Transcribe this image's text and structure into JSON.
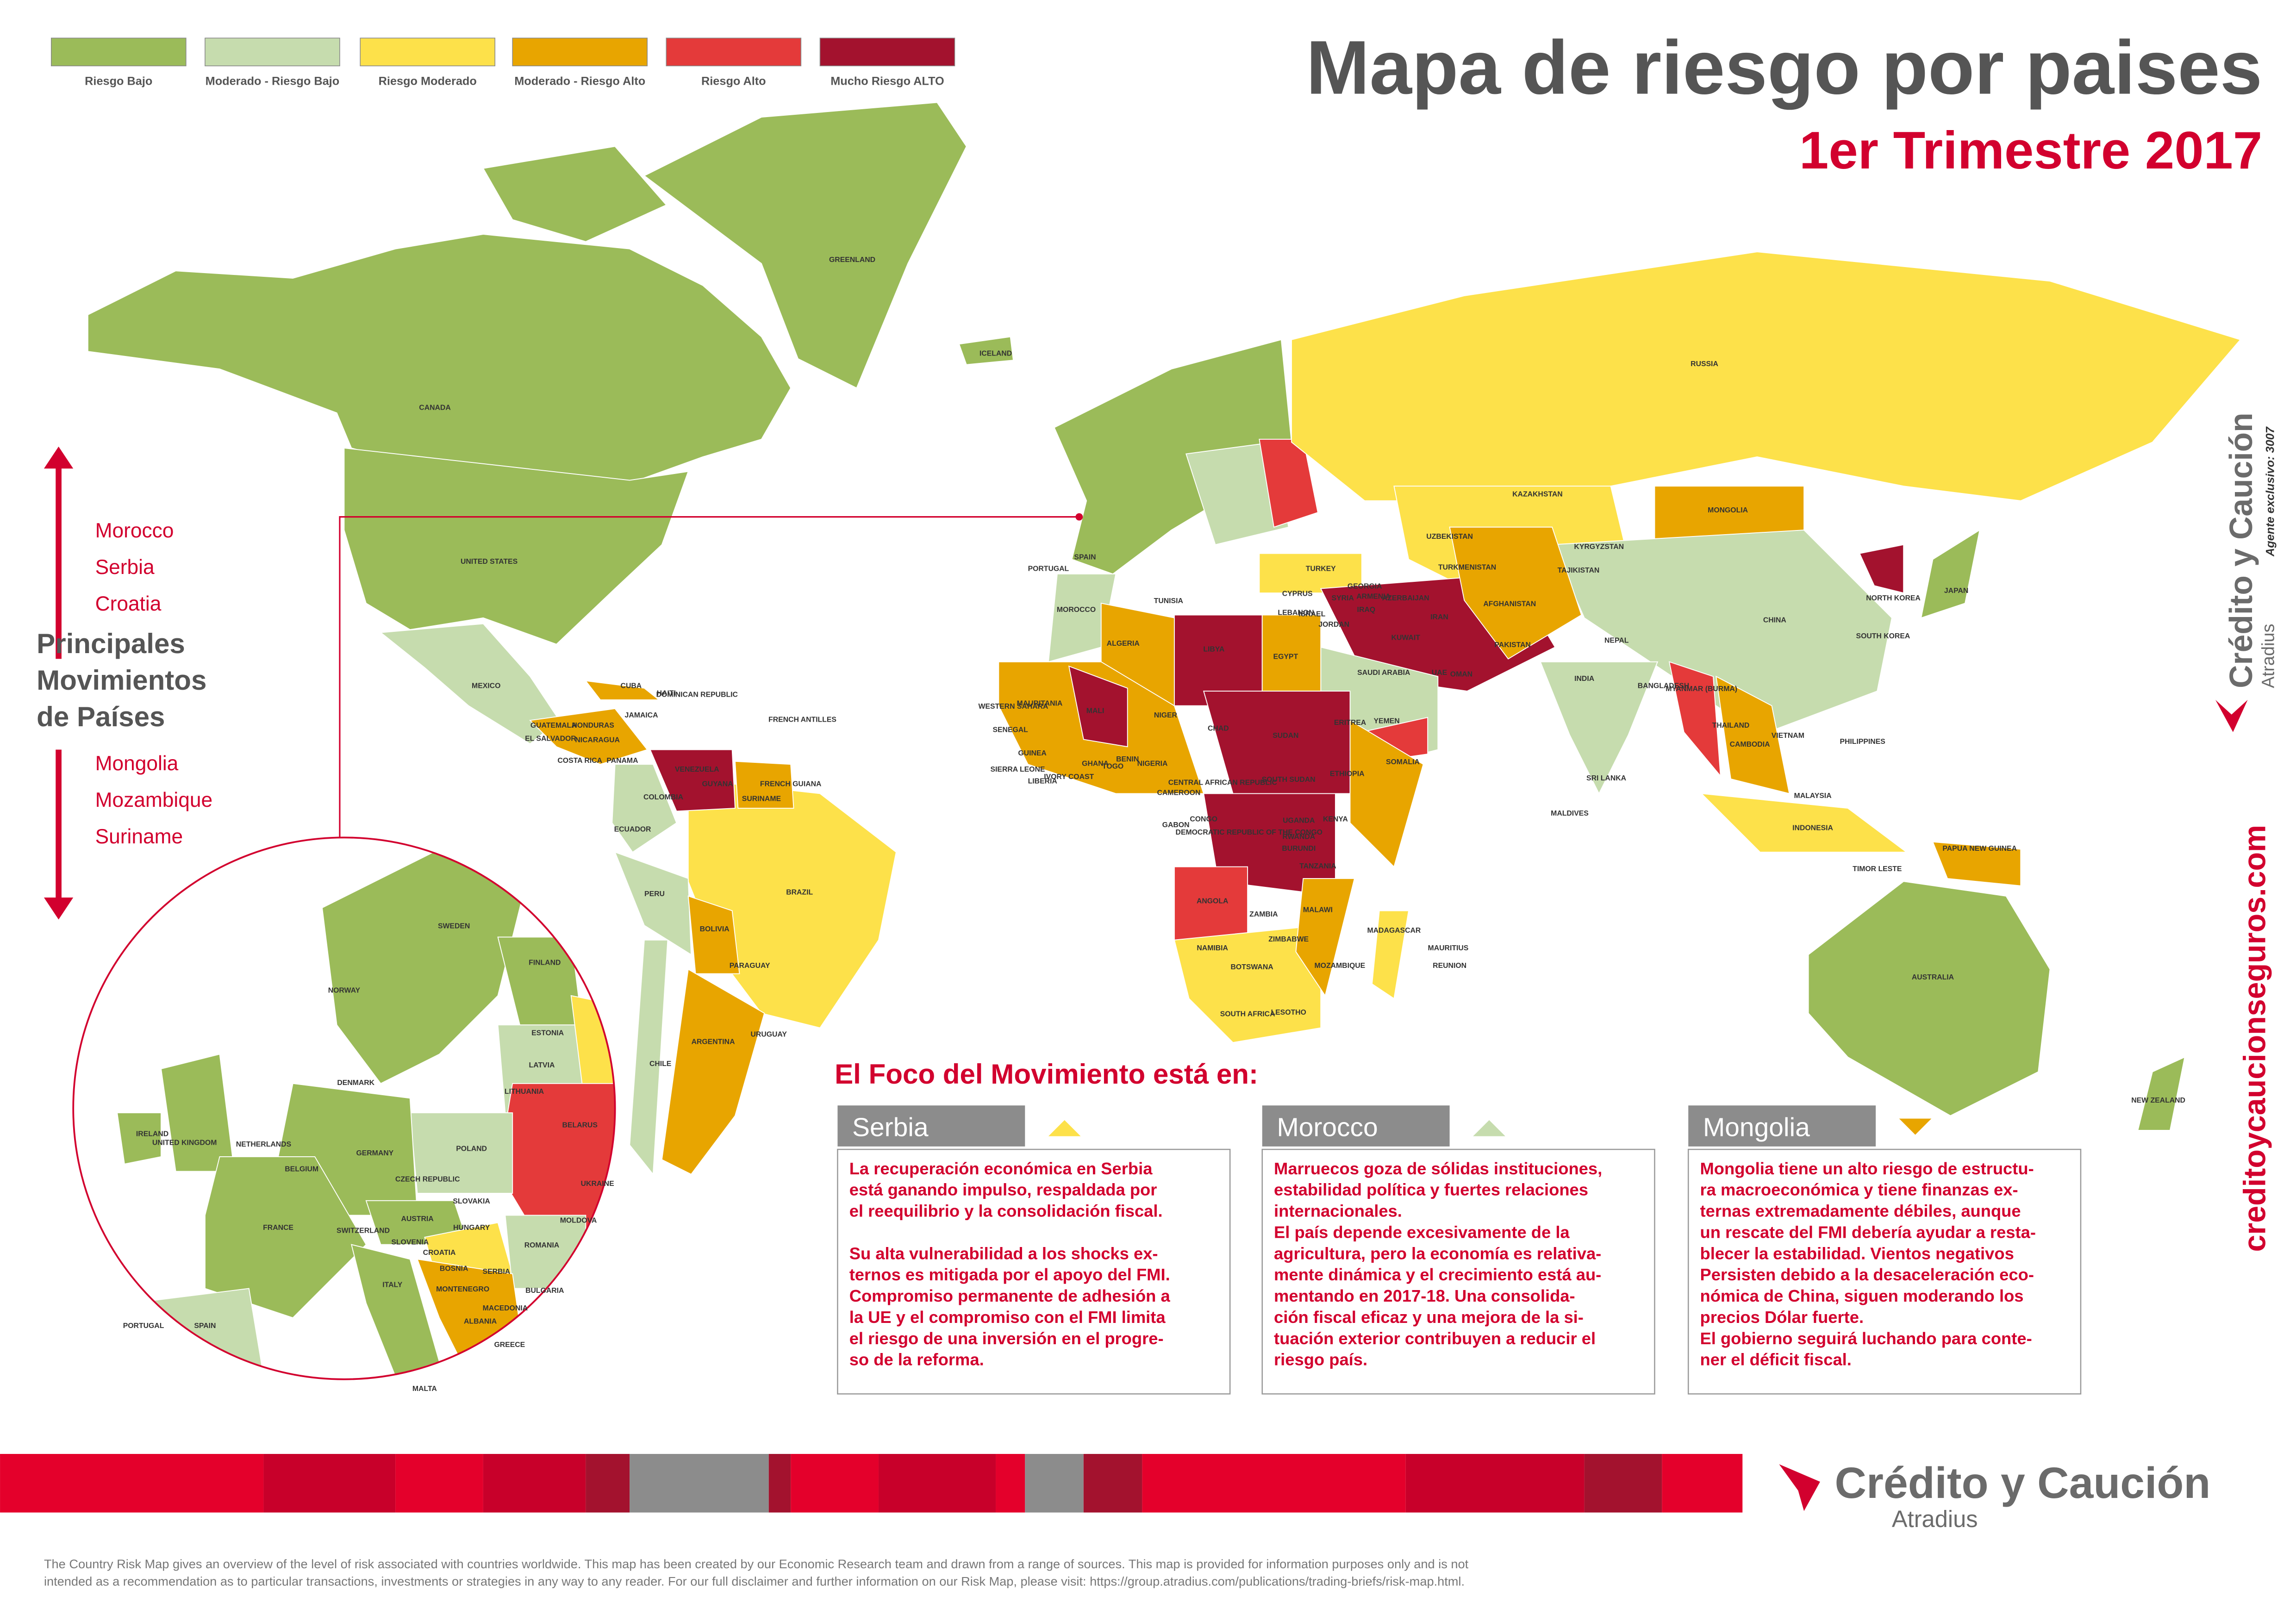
{
  "legend": {
    "items": [
      {
        "label": "Riesgo Bajo",
        "color": "#9bbb59"
      },
      {
        "label": "Moderado - Riesgo Bajo",
        "color": "#c6dcae"
      },
      {
        "label": "Riesgo Moderado",
        "color": "#fde14a"
      },
      {
        "label": "Moderado - Riesgo Alto",
        "color": "#e8a500"
      },
      {
        "label": "Riesgo Alto",
        "color": "#e43a3a"
      },
      {
        "label": "Mucho Riesgo ALTO",
        "color": "#a3122e"
      }
    ]
  },
  "header": {
    "title": "Mapa de riesgo por paises",
    "subtitle": "1er Trimestre 2017"
  },
  "movements": {
    "up": [
      "Morocco",
      "Serbia",
      "Croatia"
    ],
    "heading": [
      "Principales",
      "Movimientos",
      "de Países"
    ],
    "down": [
      "Mongolia",
      "Mozambique",
      "Suriname"
    ]
  },
  "countries": [
    "GREENLAND",
    "ICELAND",
    "CANADA",
    "UNITED STATES",
    "MEXICO",
    "CUBA",
    "HAITI",
    "DOMINICAN REPUBLIC",
    "JAMAICA",
    "GUATEMALA",
    "HONDURAS",
    "EL SALVADOR",
    "NICARAGUA",
    "COSTA RICA",
    "PANAMA",
    "FRENCH ANTILLES",
    "VENEZUELA",
    "GUYANA",
    "SURINAME",
    "FRENCH GUIANA",
    "COLOMBIA",
    "ECUADOR",
    "PERU",
    "BRAZIL",
    "BOLIVIA",
    "PARAGUAY",
    "CHILE",
    "ARGENTINA",
    "URUGUAY",
    "RUSSIA",
    "KAZAKHSTAN",
    "MONGOLIA",
    "CHINA",
    "NORTH KOREA",
    "SOUTH KOREA",
    "JAPAN",
    "TURKEY",
    "SYRIA",
    "IRAQ",
    "IRAN",
    "AFGHANISTAN",
    "PAKISTAN",
    "TURKMENISTAN",
    "UZBEKISTAN",
    "SAUDI ARABIA",
    "UAE",
    "YEMEN",
    "INDIA",
    "NEPAL",
    "BANGLADESH",
    "MYANMAR (BURMA)",
    "THAILAND",
    "CAMBODIA",
    "VIETNAM",
    "PHILIPPINES",
    "MALAYSIA",
    "SRI LANKA",
    "MALDIVES",
    "INDONESIA",
    "PAPUA NEW GUINEA",
    "TIMOR LESTE",
    "AUSTRALIA",
    "NEW ZEALAND",
    "SPAIN",
    "PORTUGAL",
    "MOROCCO",
    "ALGERIA",
    "TUNISIA",
    "LIBYA",
    "EGYPT",
    "WESTERN SAHARA",
    "MAURITANIA",
    "MALI",
    "NIGER",
    "CHAD",
    "SUDAN",
    "SOUTH SUDAN",
    "ERITREA",
    "ETHIOPIA",
    "SOMALIA",
    "SENEGAL",
    "GUINEA",
    "SIERRA LEONE",
    "LIBERIA",
    "IVORY COAST",
    "GHANA",
    "TOGO",
    "BENIN",
    "NIGERIA",
    "CAMEROON",
    "CENTRAL AFRICAN REPUBLIC",
    "GABON",
    "CONGO",
    "DEMOCRATIC REPUBLIC OF THE CONGO",
    "UGANDA",
    "KENYA",
    "RWANDA",
    "BURUNDI",
    "TANZANIA",
    "ANGOLA",
    "ZAMBIA",
    "MALAWI",
    "ZIMBABWE",
    "MOZAMBIQUE",
    "NAMIBIA",
    "BOTSWANA",
    "SOUTH AFRICA",
    "LESOTHO",
    "MADAGASCAR",
    "MAURITIUS",
    "REUNION",
    "CYPRUS",
    "LEBANON",
    "ISRAEL",
    "JORDAN",
    "KUWAIT",
    "OMAN",
    "GEORGIA",
    "ARMENIA",
    "AZERBAIJAN",
    "KYRGYZSTAN",
    "TAJIKISTAN"
  ],
  "inset": [
    "SWEDEN",
    "NORWAY",
    "FINLAND",
    "ESTONIA",
    "LATVIA",
    "LITHUANIA",
    "DENMARK",
    "IRELAND",
    "UNITED KINGDOM",
    "NETHERLANDS",
    "BELGIUM",
    "GERMANY",
    "POLAND",
    "BELARUS",
    "UKRAINE",
    "CZECH REPUBLIC",
    "SLOVAKIA",
    "FRANCE",
    "SWITZERLAND",
    "AUSTRIA",
    "HUNGARY",
    "SLOVENIA",
    "CROATIA",
    "BOSNIA",
    "SERBIA",
    "MONTENEGRO",
    "ROMANIA",
    "MOLDOVA",
    "BULGARIA",
    "MACEDONIA",
    "ALBANIA",
    "GREECE",
    "ITALY",
    "PORTUGAL",
    "SPAIN",
    "MALTA"
  ],
  "focus": {
    "heading": "El Foco del Movimiento está en:",
    "cards": [
      {
        "title": "Serbia",
        "lines": [
          "La recuperación económica en Serbia",
          "está ganando impulso, respaldada por",
          "el reequilibrio y la consolidación fiscal.",
          "",
          "Su alta vulnerabilidad a los shocks ex-",
          "ternos es mitigada por el apoyo del FMI.",
          "Compromiso permanente de adhesión a",
          "la UE y el compromiso con el FMI limita",
          "el riesgo de una inversión en el progre-",
          "so de la reforma."
        ]
      },
      {
        "title": "Morocco",
        "lines": [
          "Marruecos goza de sólidas instituciones,",
          "estabilidad política y fuertes relaciones",
          "internacionales.",
          "El país depende excesivamente de la",
          "agricultura, pero la economía es relativa-",
          "mente dinámica y el crecimiento está au-",
          "mentando en 2017-18. Una consolida-",
          "ción fiscal eficaz y una mejora de la si-",
          "tuación exterior contribuyen a reducir el",
          "riesgo país."
        ]
      },
      {
        "title": "Mongolia",
        "lines": [
          "Mongolia tiene un alto riesgo de estructu-",
          "ra macroeconómica y tiene finanzas ex-",
          "ternas extremadamente débiles, aunque",
          "un rescate del FMI debería ayudar a resta-",
          "blecer la estabilidad. Vientos negativos",
          "Persisten debido a la desaceleración eco-",
          "nómica de China, siguen moderando los",
          "precios Dólar fuerte.",
          "El gobierno seguirá luchando para conte-",
          "ner el déficit fiscal."
        ]
      }
    ]
  },
  "brand": {
    "name": "Crédito y Caución",
    "group": "Atradius",
    "agent": "Agente exclusivo: 3007",
    "website": "creditoycaucionseguros.com"
  },
  "footer": [
    "The Country Risk Map gives an overview of the level of risk associated with countries worldwide. This map has been created by our Economic Research team and drawn from a range of sources. This map is provided for information purposes only and is not",
    "intended as a recommendation as to particular transactions, investments or strategies in any way to any reader. For our full disclaimer and further information on our Risk Map, please visit: https://group.atradius.com/publications/trading-briefs/risk-map.html."
  ]
}
